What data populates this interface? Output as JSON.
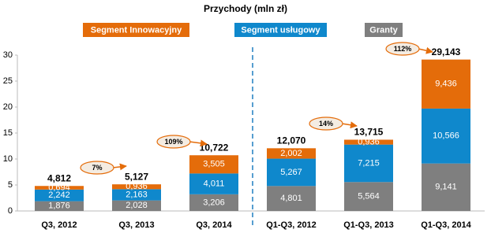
{
  "chart_data": {
    "type": "stacked_bar",
    "title": "Przychody (mln zł)",
    "categories": [
      "Q3, 2012",
      "Q3, 2013",
      "Q3, 2014",
      "Q1-Q3, 2012",
      "Q1-Q3, 2013",
      "Q1-Q3, 2014"
    ],
    "series": [
      {
        "name": "Granty",
        "color": "#7f7f7f",
        "values": [
          1.876,
          2.028,
          3.206,
          4.801,
          5.564,
          9.141
        ],
        "value_labels": [
          "1,876",
          "2,028",
          "3,206",
          "4,801",
          "5,564",
          "9,141"
        ]
      },
      {
        "name": "Segment usługowy",
        "color": "#0f88cc",
        "values": [
          2.242,
          2.163,
          4.011,
          5.267,
          7.215,
          10.566
        ],
        "value_labels": [
          "2,242",
          "2,163",
          "4,011",
          "5,267",
          "7,215",
          "10,566"
        ]
      },
      {
        "name": "Segment Innowacyjny",
        "color": "#e46c0a",
        "values": [
          0.694,
          0.936,
          3.505,
          2.002,
          0.936,
          9.436
        ],
        "value_labels": [
          "0,694",
          "0,936",
          "3,505",
          "2,002",
          "0,936",
          "9,436"
        ]
      }
    ],
    "totals": {
      "values": [
        4.812,
        5.127,
        10.722,
        12.07,
        13.715,
        29.143
      ],
      "value_labels": [
        "4,812",
        "5,127",
        "10,722",
        "12,070",
        "13,715",
        "29,143"
      ]
    },
    "annotations": [
      "7%",
      "109%",
      "14%",
      "112%"
    ],
    "ylim": [
      0,
      30
    ],
    "yticks": [
      0,
      5,
      10,
      15,
      20,
      25,
      30
    ]
  }
}
